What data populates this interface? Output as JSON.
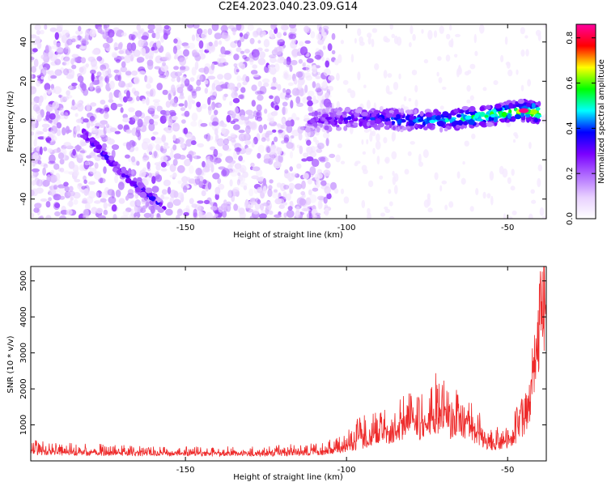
{
  "title": "C2E4.2023.040.23.09.G14",
  "chart_data": [
    {
      "type": "heatmap",
      "title": "C2E4.2023.040.23.09.G14",
      "xlabel": "Height of straight line (km)",
      "ylabel": "Frequency (Hz)",
      "xlim": [
        -198,
        -38
      ],
      "ylim": [
        -50,
        49
      ],
      "x_ticks": [
        -150,
        -100,
        -50
      ],
      "y_ticks": [
        -40,
        -20,
        0,
        20,
        40
      ],
      "x_tick_labels": [
        "-150",
        "-100",
        "-50"
      ],
      "y_tick_labels": [
        "-40",
        "-20",
        "0",
        "20",
        "40"
      ],
      "colorbar": {
        "label": "Normalized spectral amplitude",
        "range": [
          0,
          0.86
        ],
        "ticks": [
          0.0,
          0.2,
          0.4,
          0.6,
          0.8
        ],
        "tick_labels": [
          "0.0",
          "0.2",
          "0.4",
          "0.6",
          "0.8"
        ],
        "colormap": [
          "#ffffff",
          "#e8d0ff",
          "#b06cff",
          "#7a00ff",
          "#0000ff",
          "#00ffff",
          "#00ff00",
          "#ffff00",
          "#ff0000",
          "#ff00a0"
        ]
      },
      "background_noise": {
        "x_range": [
          -198,
          -110
        ],
        "amplitude_range": [
          0.05,
          0.25
        ]
      },
      "features": [
        {
          "name": "descending streak",
          "x": [
            -182,
            -170,
            -160,
            -156
          ],
          "y": [
            -6,
            -26,
            -40,
            -46
          ]
        },
        {
          "name": "flat band",
          "x": [
            -112,
            -100,
            -90,
            -80,
            -70,
            -60,
            -50,
            -45,
            -40
          ],
          "y": [
            0,
            1,
            1,
            0,
            0,
            2,
            4,
            5,
            4
          ]
        },
        {
          "name": "peak",
          "x": [
            -45
          ],
          "y": [
            5
          ],
          "amplitude": 0.85
        }
      ],
      "grid": false
    },
    {
      "type": "line",
      "xlabel": "Height of straight line (km)",
      "ylabel": "SNR (10 * v/v)",
      "xlim": [
        -198,
        -38
      ],
      "ylim": [
        0,
        5400
      ],
      "x_ticks": [
        -150,
        -100,
        -50
      ],
      "y_ticks": [
        1000,
        2000,
        3000,
        4000,
        5000
      ],
      "x_tick_labels": [
        "-150",
        "-100",
        "-50"
      ],
      "y_tick_labels": [
        "1000",
        "2000",
        "3000",
        "4000",
        "5000"
      ],
      "line_color": "#ee2a2a",
      "series": [
        {
          "x": [
            -198,
            -190,
            -180,
            -170,
            -160,
            -150,
            -140,
            -130,
            -120,
            -110,
            -105,
            -100,
            -95,
            -90,
            -85,
            -82,
            -80,
            -78,
            -75,
            -72,
            -70,
            -68,
            -65,
            -62,
            -60,
            -57,
            -55,
            -52,
            -50,
            -48,
            -46,
            -44,
            -42,
            -40,
            -39
          ],
          "y": [
            300,
            260,
            250,
            240,
            230,
            230,
            220,
            230,
            240,
            260,
            300,
            400,
            600,
            800,
            900,
            1100,
            1500,
            1000,
            1200,
            1300,
            1500,
            1100,
            1200,
            1000,
            800,
            600,
            500,
            450,
            600,
            800,
            1000,
            1500,
            2500,
            4600,
            5400
          ],
          "envelope_max": [
            600,
            500,
            500,
            450,
            400,
            400,
            400,
            420,
            450,
            500,
            600,
            1000,
            1300,
            1400,
            1500,
            1900,
            2200,
            1800,
            2000,
            2500,
            2300,
            1900,
            2100,
            1700,
            1600,
            1300,
            1000,
            900,
            1100,
            1400,
            1700,
            2200,
            3400,
            4600,
            5400
          ]
        }
      ],
      "grid": false
    }
  ]
}
